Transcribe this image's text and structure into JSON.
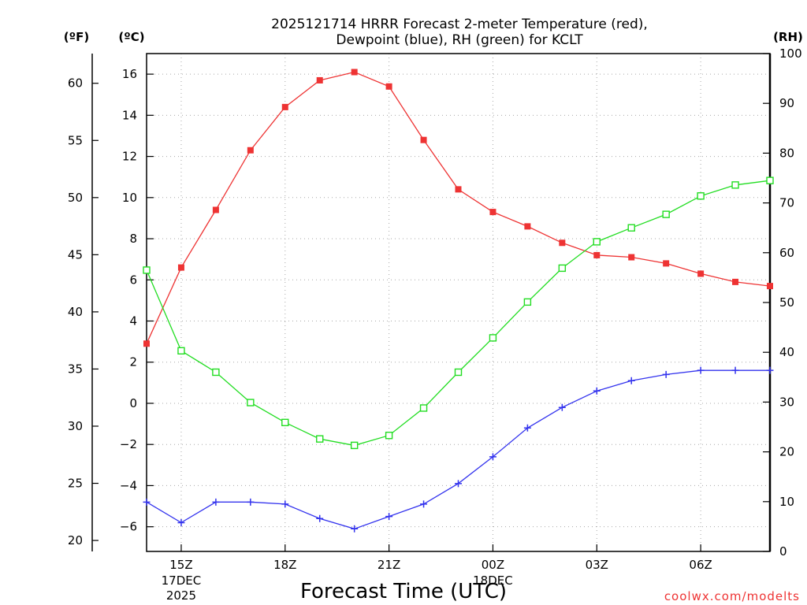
{
  "chart_data": {
    "type": "line",
    "title_line1": "2025121714 HRRR Forecast 2-meter Temperature (red),",
    "title_line2": "Dewpoint (blue), RH (green) for KCLT",
    "xlabel": "Forecast Time (UTC)",
    "credit": "coolwx.com/modelts",
    "units": {
      "fahrenheit": "(ºF)",
      "celsius": "(ºC)",
      "rh": "(RH)"
    },
    "hours": [
      14,
      15,
      16,
      17,
      18,
      19,
      20,
      21,
      22,
      23,
      24,
      25,
      26,
      27,
      28,
      29,
      30,
      31,
      32
    ],
    "xlim": [
      14,
      32
    ],
    "x_ticks": [
      {
        "hour": 15,
        "label": "15Z",
        "sub1": "17DEC",
        "sub2": "2025"
      },
      {
        "hour": 18,
        "label": "18Z"
      },
      {
        "hour": 21,
        "label": "21Z"
      },
      {
        "hour": 24,
        "label": "00Z",
        "sub1": "18DEC"
      },
      {
        "hour": 27,
        "label": "03Z"
      },
      {
        "hour": 30,
        "label": "06Z"
      }
    ],
    "celsius_axis": {
      "ylim": [
        -7.2,
        17.0
      ],
      "ticks": [
        16,
        14,
        12,
        10,
        8,
        6,
        4,
        2,
        0,
        -2,
        -4,
        -6
      ],
      "tick_labels": [
        "16",
        "14",
        "12",
        "10",
        "8",
        "6",
        "4",
        "2",
        "0",
        "−2",
        "−4",
        "−6"
      ]
    },
    "fahrenheit_axis": {
      "ticks": [
        60,
        55,
        50,
        45,
        40,
        35,
        30,
        25,
        20
      ],
      "tick_labels": [
        "60",
        "55",
        "50",
        "45",
        "40",
        "35",
        "30",
        "25",
        "20"
      ]
    },
    "rh_axis": {
      "ylim": [
        0,
        100
      ],
      "ticks": [
        100,
        90,
        80,
        70,
        60,
        50,
        40,
        30,
        20,
        10,
        0
      ],
      "tick_labels": [
        "100",
        "90",
        "80",
        "70",
        "60",
        "50",
        "40",
        "30",
        "20",
        "10",
        "0"
      ]
    },
    "series": [
      {
        "name": "Temperature",
        "unit": "C",
        "color": "#ee3333",
        "marker": "filled-square",
        "values": [
          2.9,
          6.6,
          9.4,
          12.3,
          14.4,
          15.7,
          16.1,
          15.4,
          12.8,
          10.4,
          9.3,
          8.6,
          7.8,
          7.2,
          7.1,
          6.8,
          6.3,
          5.9,
          5.7
        ]
      },
      {
        "name": "Dewpoint",
        "unit": "C",
        "color": "#3333ee",
        "marker": "plus",
        "values": [
          -4.8,
          -5.8,
          -4.8,
          -4.8,
          -4.9,
          -5.6,
          -6.1,
          -5.5,
          -4.9,
          -3.9,
          -2.6,
          -1.2,
          -0.2,
          0.6,
          1.1,
          1.4,
          1.6,
          1.6,
          1.6
        ]
      },
      {
        "name": "RH",
        "unit": "%",
        "color": "#22dd22",
        "marker": "open-square",
        "values": [
          56.5,
          40.3,
          36.0,
          29.9,
          25.9,
          22.6,
          21.3,
          23.3,
          28.8,
          36.0,
          42.9,
          50.1,
          56.9,
          62.2,
          65.0,
          67.7,
          71.4,
          73.6,
          74.5
        ]
      }
    ]
  }
}
